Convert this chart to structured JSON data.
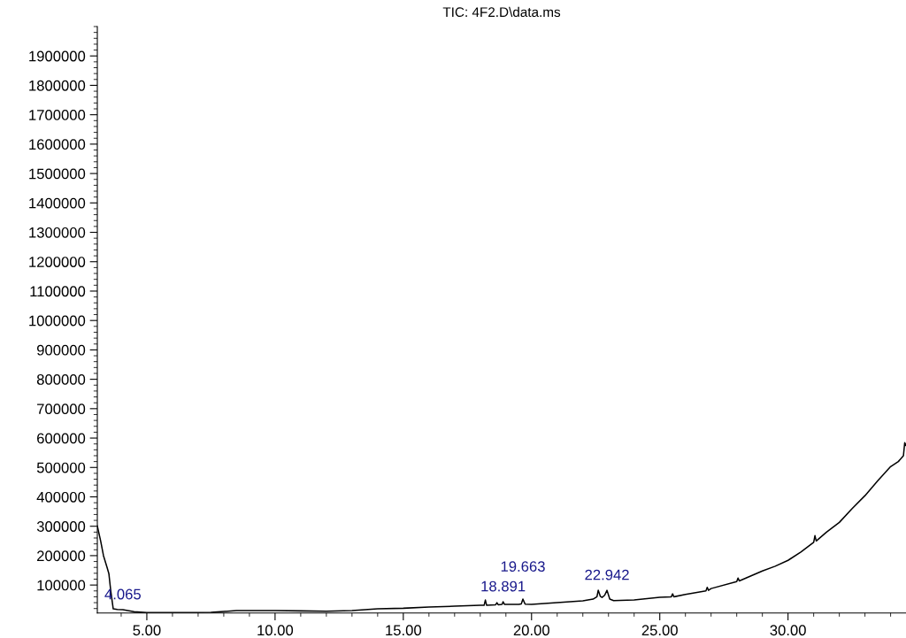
{
  "chart_data": {
    "type": "line",
    "title": "TIC: 4F2.D\\data.ms",
    "series": [
      {
        "color": "#000000",
        "x": [
          3.07,
          3.2,
          3.31,
          3.45,
          3.52,
          3.59,
          3.69,
          3.85,
          4.065,
          4.5,
          5.0,
          5.5,
          6.5,
          7.5,
          8.0,
          8.5,
          9.5,
          10.0,
          11.0,
          12.0,
          13.0,
          14.0,
          15.0,
          16.0,
          17.0,
          18.0,
          18.15,
          18.2,
          18.25,
          18.6,
          18.65,
          18.7,
          18.85,
          18.891,
          18.95,
          19.5,
          19.6,
          19.663,
          19.75,
          20.0,
          21.0,
          22.0,
          22.4,
          22.55,
          22.6,
          22.68,
          22.75,
          22.85,
          22.942,
          23.05,
          23.2,
          24.0,
          25.0,
          25.45,
          25.5,
          25.55,
          26.0,
          26.8,
          26.85,
          26.9,
          27.0,
          28.0,
          28.05,
          28.1,
          29.0,
          29.5,
          30.0,
          30.5,
          31.0,
          31.05,
          31.1,
          31.5,
          32.0,
          32.5,
          33.0,
          33.5,
          34.0,
          34.3,
          34.5,
          34.55,
          34.6
        ],
        "values": [
          301000,
          250000,
          200000,
          160000,
          139000,
          83000,
          19000,
          17000,
          16000,
          9000,
          6000,
          6000,
          6000,
          7000,
          10000,
          13000,
          13000,
          13000,
          12000,
          11000,
          13000,
          19000,
          21000,
          25000,
          28000,
          31000,
          31000,
          49000,
          31000,
          33000,
          40000,
          33000,
          34000,
          43000,
          34000,
          34000,
          36000,
          52000,
          35000,
          34000,
          40000,
          46000,
          52000,
          60000,
          82000,
          62000,
          58000,
          65000,
          82000,
          52000,
          47000,
          49000,
          58000,
          60000,
          70000,
          60000,
          68000,
          80000,
          92000,
          82000,
          88000,
          112000,
          124000,
          114000,
          148000,
          164000,
          184000,
          212000,
          245000,
          268000,
          250000,
          280000,
          313000,
          360000,
          404000,
          455000,
          503000,
          520000,
          540000,
          584000,
          575000
        ]
      }
    ],
    "xlim": [
      3.07,
      34.6
    ],
    "ylim": [
      5000,
      2000000
    ],
    "xticks": [
      {
        "value": 5,
        "label": "5.00"
      },
      {
        "value": 10,
        "label": "10.00"
      },
      {
        "value": 15,
        "label": "15.00"
      },
      {
        "value": 20,
        "label": "20.00"
      },
      {
        "value": 25,
        "label": "25.00"
      },
      {
        "value": 30,
        "label": "30.00"
      }
    ],
    "yticks": [
      100000,
      200000,
      300000,
      400000,
      500000,
      600000,
      700000,
      800000,
      900000,
      1000000,
      1100000,
      1200000,
      1300000,
      1400000,
      1500000,
      1600000,
      1700000,
      1800000,
      1900000
    ],
    "annotations": [
      {
        "text": "4.065",
        "x": 4.065,
        "y": 16000
      },
      {
        "text": "18.891",
        "x": 18.891,
        "y": 43000
      },
      {
        "text": "19.663",
        "x": 19.663,
        "y": 52000
      },
      {
        "text": "22.942",
        "x": 22.942,
        "y": 82000
      }
    ],
    "grid": false,
    "legend": false
  }
}
